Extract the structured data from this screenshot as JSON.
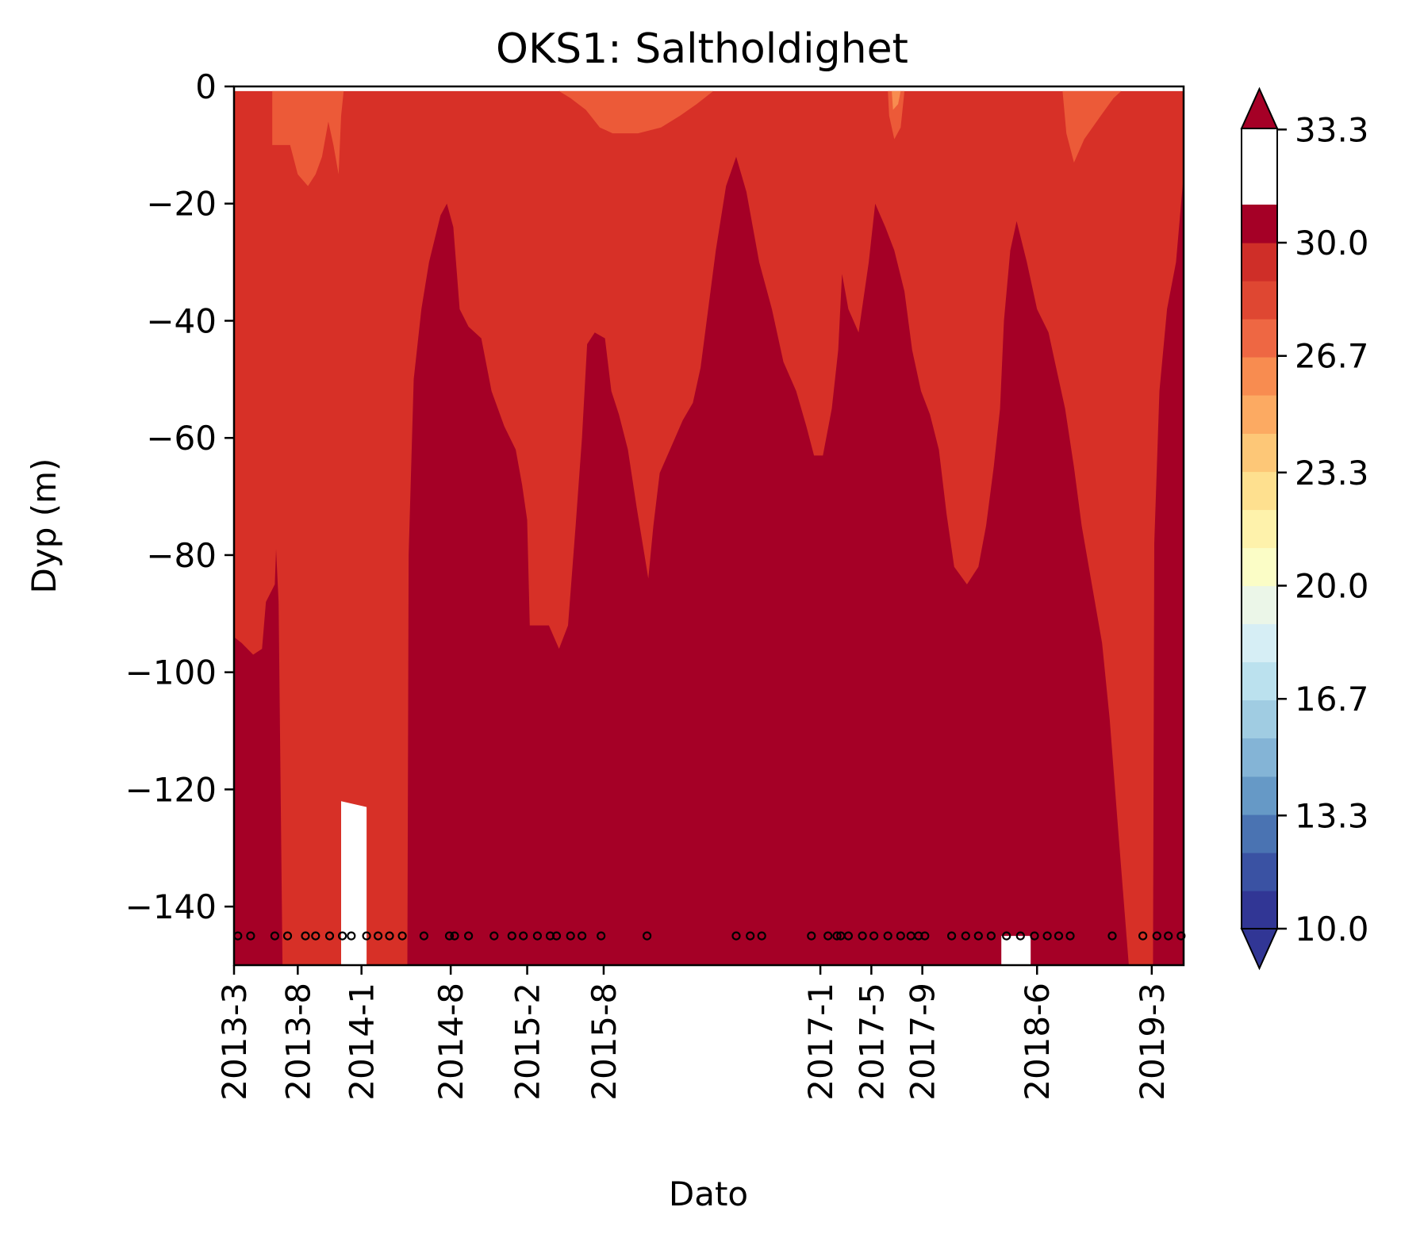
{
  "chart_data": {
    "type": "contour",
    "title": "OKS1: Saltholdighet",
    "xlabel": "Dato",
    "ylabel": "Dyp (m)",
    "ylim": [
      -150,
      0
    ],
    "y_ticks": [
      0,
      -20,
      -40,
      -60,
      -80,
      -100,
      -120,
      -140
    ],
    "y_tick_labels": [
      "0",
      "−20",
      "−40",
      "−60",
      "−80",
      "−100",
      "−120",
      "−140"
    ],
    "x_tick_labels": [
      "2013-3",
      "2013-8",
      "2014-1",
      "2014-8",
      "2015-2",
      "2015-8",
      "2017-1",
      "2017-5",
      "2017-9",
      "2018-6",
      "2019-3"
    ],
    "x_tick_months": [
      0,
      5,
      10,
      17,
      23,
      29,
      46,
      50,
      54,
      63,
      72
    ],
    "xlim_months": [
      0,
      74.5
    ],
    "sample_depth": -145,
    "sample_months": [
      0.3,
      1.3,
      3.2,
      4.2,
      5.6,
      6.4,
      7.5,
      8.5,
      9.2,
      10.4,
      11.3,
      12.2,
      13.2,
      14.9,
      16.9,
      17.3,
      18.4,
      20.4,
      21.8,
      22.7,
      23.8,
      24.8,
      25.3,
      26.4,
      27.3,
      28.8,
      32.4,
      39.4,
      40.5,
      41.4,
      45.3,
      46.6,
      47.3,
      47.6,
      48.2,
      49.3,
      50.2,
      51.3,
      52.3,
      53.1,
      53.7,
      54.2,
      56.3,
      57.4,
      58.4,
      59.4,
      60.6,
      61.7,
      62.8,
      63.8,
      64.7,
      65.6,
      68.9,
      71.3,
      72.4,
      73.3,
      74.3
    ],
    "colorbar": {
      "ticks": [
        10.0,
        13.3,
        16.7,
        20.0,
        23.3,
        26.7,
        30.0,
        33.3
      ],
      "tick_labels": [
        "10.0",
        "13.3",
        "16.7",
        "20.0",
        "23.3",
        "26.7",
        "30.0",
        "33.3"
      ],
      "levels": [
        10.0,
        11.11,
        12.22,
        13.33,
        14.44,
        15.56,
        16.67,
        17.78,
        18.89,
        20.0,
        21.11,
        22.22,
        23.33,
        24.44,
        25.56,
        26.67,
        27.78,
        28.89,
        30.0,
        31.11,
        32.22,
        33.33
      ],
      "colors": [
        "#313695",
        "#3a52a3",
        "#4a73b2",
        "#6699c6",
        "#84b4d6",
        "#a0cce2",
        "#bbe1ee",
        "#d6eef5",
        "#ebf6e8",
        "#fbfdc6",
        "#fef2ab",
        "#fee08f",
        "#fdc777",
        "#fcaa62",
        "#f88c50",
        "#ee6743",
        "#df4732",
        "#cf2e28",
        "#a50026"
      ],
      "extend": "both",
      "under_color": "#313695",
      "over_color": "#a50026"
    },
    "fields": {
      "deep_saltiest_color": "#a50026",
      "mid_color": "#d73027",
      "surface_color": "#ec5a38",
      "surface_freshest_color": "#f88c50"
    }
  }
}
